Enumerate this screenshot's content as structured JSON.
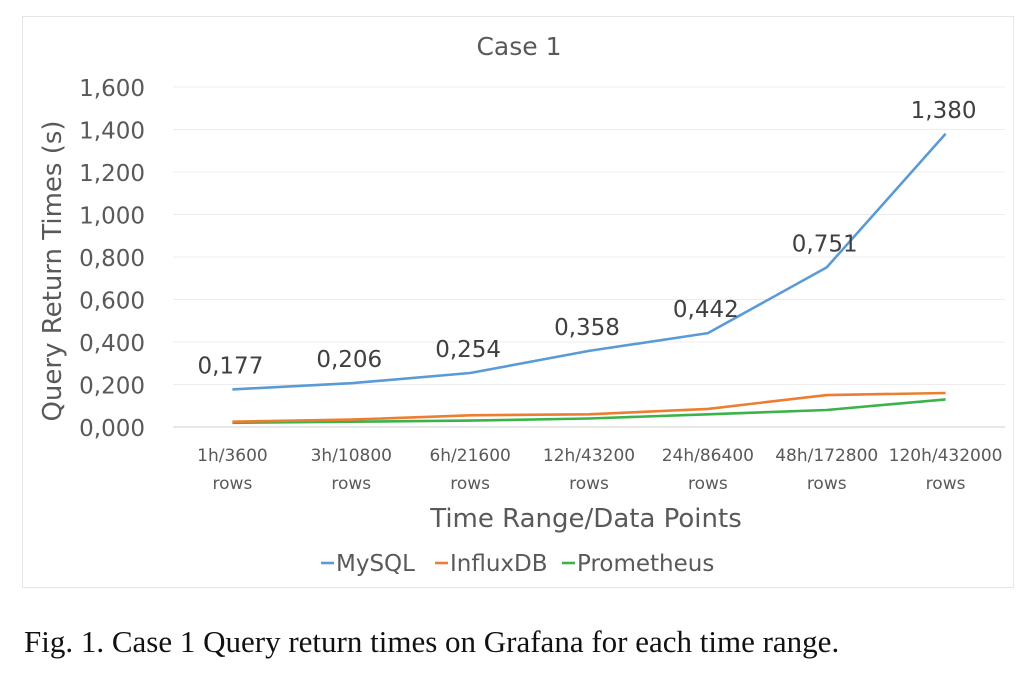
{
  "chart_data": {
    "type": "line",
    "title": "Case 1",
    "xlabel": "Time Range/Data Points",
    "ylabel": "Query Return Times (s)",
    "ylim": [
      0,
      1.6
    ],
    "yticks": [
      0,
      0.2,
      0.4,
      0.6,
      0.8,
      1.0,
      1.2,
      1.4,
      1.6
    ],
    "ytick_labels": [
      "0,000",
      "0,200",
      "0,400",
      "0,600",
      "0,800",
      "1,000",
      "1,200",
      "1,400",
      "1,600"
    ],
    "categories": [
      [
        "1h/3600",
        "rows"
      ],
      [
        "3h/10800",
        "rows"
      ],
      [
        "6h/21600",
        "rows"
      ],
      [
        "12h/43200",
        "rows"
      ],
      [
        "24h/86400",
        "rows"
      ],
      [
        "48h/172800",
        "rows"
      ],
      [
        "120h/432000",
        "rows"
      ]
    ],
    "grid": "horizontal",
    "legend_position": "bottom",
    "series": [
      {
        "name": "MySQL",
        "color": "#5b9bd5",
        "values": [
          0.177,
          0.206,
          0.254,
          0.358,
          0.442,
          0.751,
          1.38
        ],
        "labels": [
          "0,177",
          "0,206",
          "0,254",
          "0,358",
          "0,442",
          "0,751",
          "1,380"
        ]
      },
      {
        "name": "InfluxDB",
        "color": "#ed7d31",
        "values": [
          0.025,
          0.035,
          0.055,
          0.06,
          0.085,
          0.15,
          0.16
        ]
      },
      {
        "name": "Prometheus",
        "color": "#3cb34a",
        "values": [
          0.02,
          0.025,
          0.03,
          0.04,
          0.06,
          0.08,
          0.13
        ]
      }
    ]
  },
  "caption": "Fig. 1.  Case 1 Query return times on Grafana for each time range."
}
